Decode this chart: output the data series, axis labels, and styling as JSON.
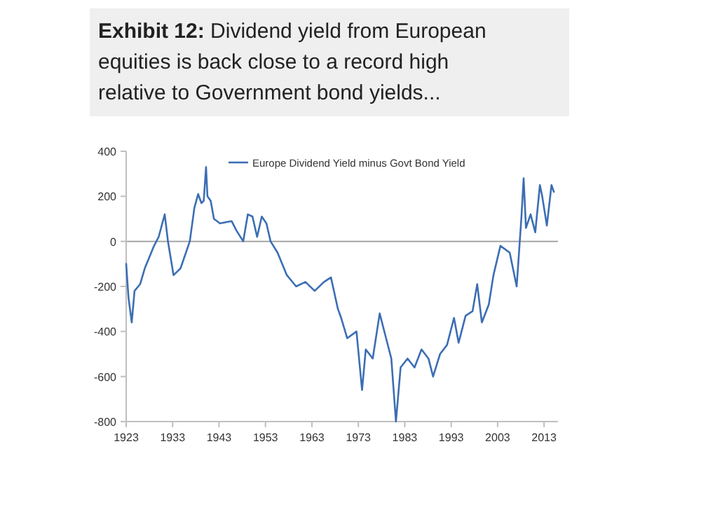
{
  "chart_data": {
    "type": "line",
    "title": "Exhibit 12: Dividend yield from European equities is back close to a record high relative to Government bond yields...",
    "x": [
      1923.0,
      1923.5,
      1924.2,
      1924.8,
      1926,
      1927,
      1929,
      1930,
      1931.3,
      1932,
      1933.2,
      1934.7,
      1936.7,
      1937.7,
      1938.5,
      1939.2,
      1939.7,
      1940.2,
      1940.5,
      1941.2,
      1941.9,
      1943.2,
      1945.7,
      1946.7,
      1948.2,
      1949.2,
      1950.2,
      1951.2,
      1952.2,
      1953.2,
      1954.1,
      1955.6,
      1957.6,
      1959.6,
      1961.6,
      1963.6,
      1965.6,
      1967.1,
      1968.6,
      1969.3,
      1970.6,
      1972.6,
      1973.8,
      1974.6,
      1976.1,
      1977.6,
      1979.1,
      1980.1,
      1981.1,
      1982.1,
      1983.6,
      1985.1,
      1986.6,
      1988.1,
      1989.1,
      1990.6,
      1992.1,
      1993.6,
      1994.6,
      1996.1,
      1997.6,
      1998.6,
      1999.6,
      2001.1,
      2002.1,
      2003.6,
      2005.6,
      2007.1,
      2008.1,
      2008.6,
      2009.1,
      2010.1,
      2011.1,
      2012.1,
      2012.6,
      2013.6,
      2014.6,
      2015.1
    ],
    "series": [
      {
        "name": "Europe Dividend Yield minus Govt Bond Yield",
        "color": "#3c6eb4",
        "values": [
          -100,
          -250,
          -360,
          -220,
          -190,
          -120,
          -20,
          20,
          120,
          0,
          -150,
          -120,
          0,
          150,
          210,
          170,
          180,
          330,
          200,
          180,
          100,
          80,
          90,
          50,
          0,
          120,
          110,
          20,
          110,
          80,
          0,
          -50,
          -150,
          -200,
          -180,
          -220,
          -180,
          -160,
          -300,
          -340,
          -430,
          -400,
          -660,
          -480,
          -520,
          -320,
          -440,
          -520,
          -800,
          -560,
          -520,
          -560,
          -480,
          -520,
          -600,
          -500,
          -460,
          -340,
          -450,
          -330,
          -310,
          -190,
          -360,
          -280,
          -150,
          -20,
          -50,
          -200,
          100,
          280,
          60,
          120,
          40,
          250,
          200,
          70,
          250,
          220
        ]
      }
    ],
    "xlim": [
      1923,
      2016
    ],
    "ylim": [
      -800,
      400
    ],
    "xticks": [
      1923,
      1933,
      1943,
      1953,
      1963,
      1973,
      1983,
      1993,
      2003,
      2013
    ],
    "yticks": [
      -800,
      -600,
      -400,
      -200,
      0,
      200,
      400
    ],
    "ref_lines": [
      {
        "axis": "y",
        "value": 0,
        "color": "#a6a6a6"
      }
    ],
    "grid": false,
    "legend": "top right",
    "marker": "none",
    "line_style": "solid"
  }
}
